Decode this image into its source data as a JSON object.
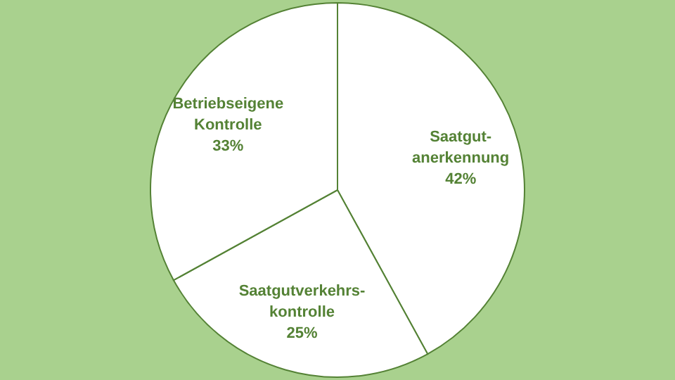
{
  "chart_data": {
    "type": "pie",
    "categories": [
      "Saatgut-anerkennung",
      "Saatgutverkehrs-kontrolle",
      "Betriebseigene Kontrolle"
    ],
    "values": [
      42,
      25,
      33
    ],
    "value_labels": [
      "42%",
      "25%",
      "33%"
    ],
    "colors": [
      "#ffffff",
      "#ffffff",
      "#ffffff"
    ],
    "legend": false
  }
}
